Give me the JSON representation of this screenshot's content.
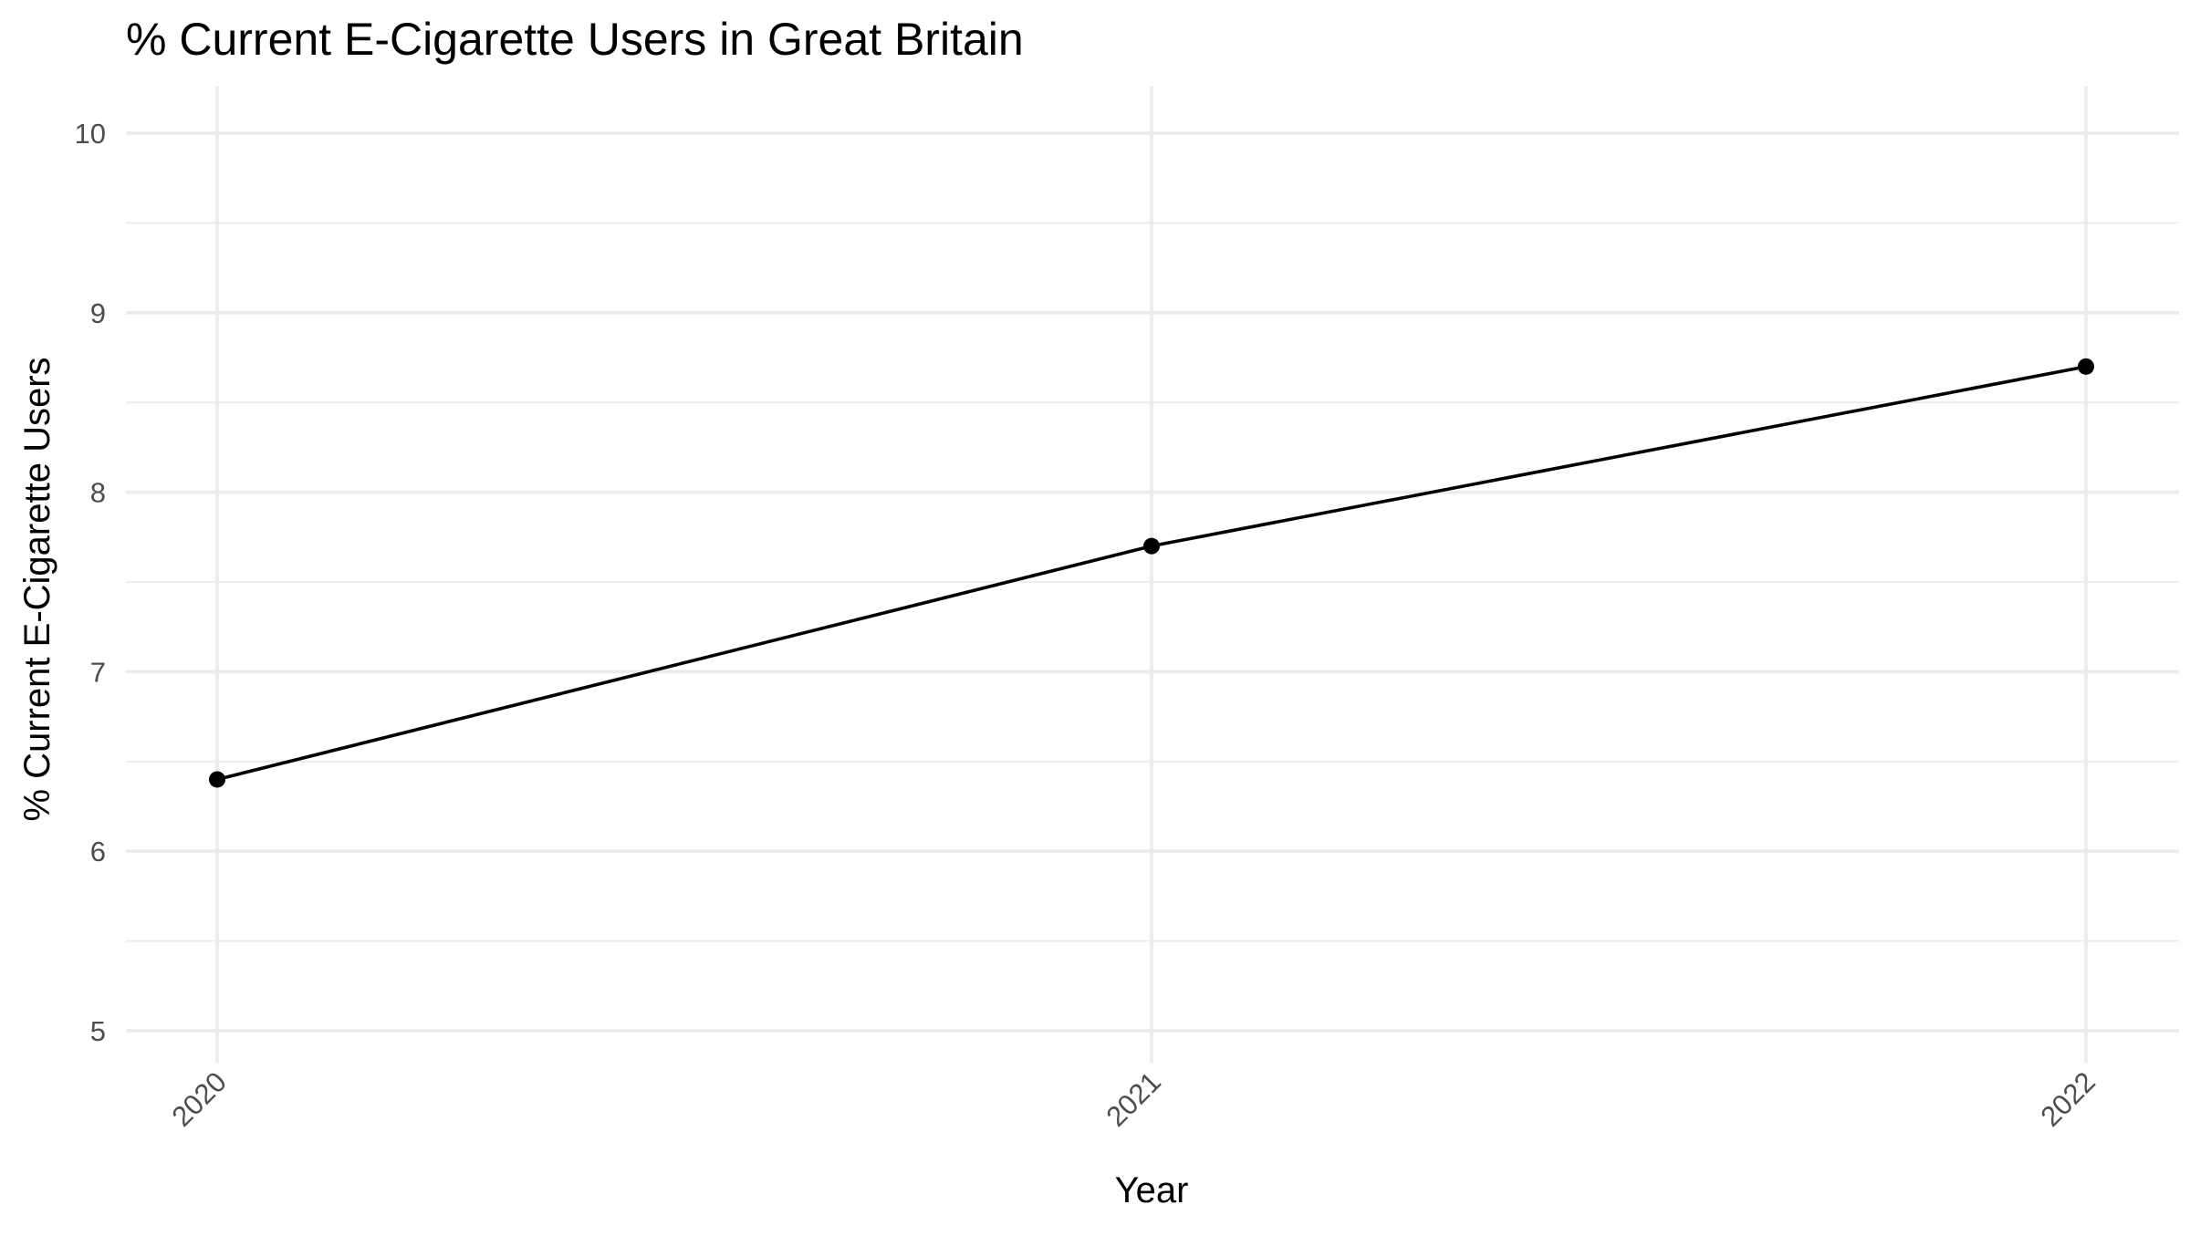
{
  "chart_data": {
    "type": "line",
    "title": "% Current E-Cigarette Users in Great Britain",
    "xlabel": "Year",
    "ylabel": "% Current E-Cigarette Users",
    "x": [
      "2020",
      "2021",
      "2022"
    ],
    "series": [
      {
        "values": [
          6.4,
          7.7,
          8.7
        ],
        "color": "#000000"
      }
    ],
    "ylim": [
      5,
      10
    ],
    "y_ticks": [
      5,
      6,
      7,
      8,
      9,
      10
    ],
    "y_tick_labels": [
      "5",
      "6",
      "7",
      "8",
      "9",
      "10"
    ],
    "x_tick_labels": [
      "2020",
      "2021",
      "2022"
    ],
    "grid": true,
    "legend": "none"
  }
}
